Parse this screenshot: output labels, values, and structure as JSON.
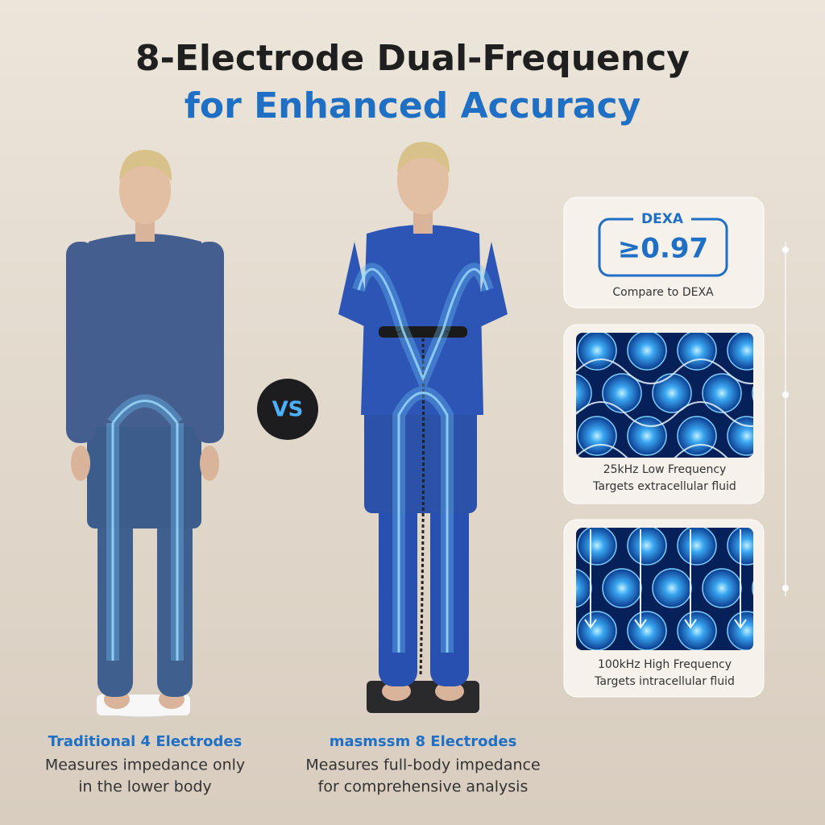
{
  "header": {
    "title_line1": "8-Electrode Dual-Frequency",
    "title_line2": "for Enhanced Accuracy"
  },
  "vs": "VS",
  "left": {
    "heading": "Traditional 4 Electrodes",
    "line1": "Measures impedance only",
    "line2": "in the lower body"
  },
  "right": {
    "heading": "masmssm 8 Electrodes",
    "line1": "Measures full-body impedance",
    "line2": "for comprehensive analysis"
  },
  "cards": [
    {
      "badge": "DEXA",
      "value": "≥0.97",
      "caption": "Compare to DEXA"
    },
    {
      "line1": "25kHz Low Frequency",
      "line2": "Targets extracellular fluid"
    },
    {
      "line1": "100kHz High Frequency",
      "line2": "Targets intracellular fluid"
    }
  ]
}
